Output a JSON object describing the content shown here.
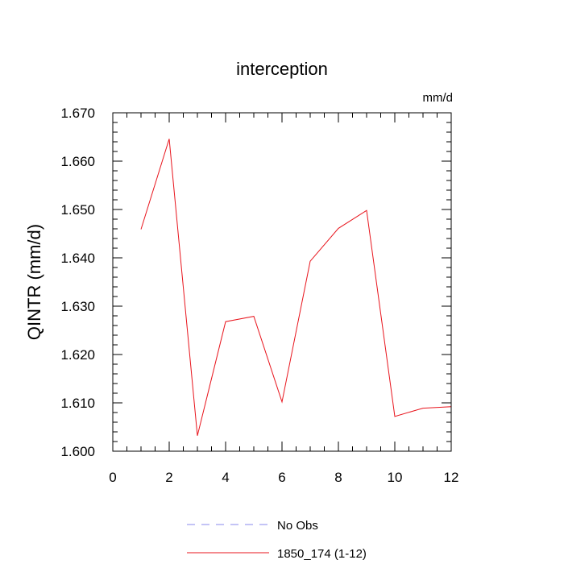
{
  "chart_data": {
    "type": "line",
    "title": "interception",
    "units_label": "mm/d",
    "ylabel": "QINTR  (mm/d)",
    "xlabel": "",
    "xlim": [
      0,
      12
    ],
    "ylim": [
      1.6,
      1.67
    ],
    "x_ticks": [
      0,
      2,
      4,
      6,
      8,
      10,
      12
    ],
    "x_tick_labels": [
      "0",
      "2",
      "4",
      "6",
      "8",
      "10",
      "12"
    ],
    "y_ticks": [
      1.6,
      1.61,
      1.62,
      1.63,
      1.64,
      1.65,
      1.66,
      1.67
    ],
    "y_tick_labels": [
      "1.600",
      "1.610",
      "1.620",
      "1.630",
      "1.640",
      "1.650",
      "1.660",
      "1.670"
    ],
    "grid": false,
    "legend_position": "bottom",
    "series": [
      {
        "name": "1850_174 (1-12)",
        "color": "#e8141c",
        "dash": "solid",
        "x": [
          1,
          2,
          3,
          4,
          5,
          6,
          7,
          8,
          9,
          10,
          11,
          12
        ],
        "y": [
          1.6459,
          1.6646,
          1.6032,
          1.6268,
          1.6279,
          1.6102,
          1.6393,
          1.6461,
          1.6498,
          1.6072,
          1.6089,
          1.6092
        ]
      }
    ],
    "legend": [
      {
        "name": "No Obs",
        "color": "#8888ee",
        "dash": "dashed"
      },
      {
        "name": "1850_174 (1-12)",
        "color": "#e8141c",
        "dash": "solid"
      }
    ]
  }
}
